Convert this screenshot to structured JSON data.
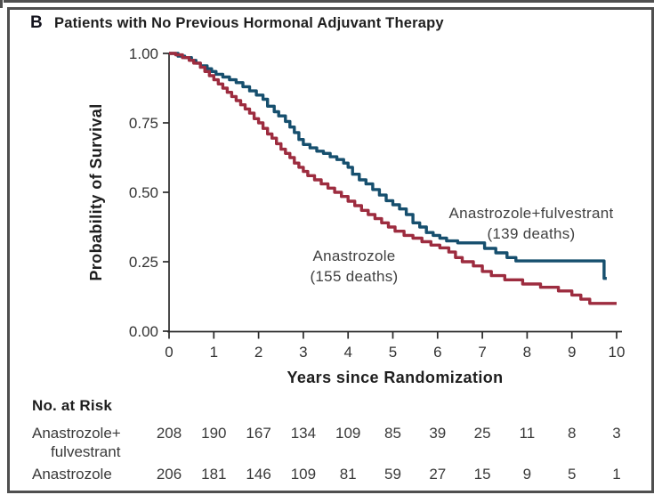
{
  "panel": {
    "letter": "B",
    "title": "Patients with No Previous Hormonal Adjuvant Therapy"
  },
  "colors": {
    "fulvestrant_curve": "#164f6e",
    "anastrozole_curve": "#9d2c3f",
    "axis": "#2a2a2a",
    "text": "#333333",
    "frame_border": "#4f4f4f"
  },
  "chart_data": {
    "type": "line",
    "subtype": "kaplan-meier-step",
    "xlabel": "Years since Randomization",
    "ylabel": "Probability of Survival",
    "xlim": [
      0,
      10
    ],
    "ylim": [
      0.0,
      1.0
    ],
    "grid": false,
    "x_ticks": [
      "0",
      "1",
      "2",
      "3",
      "4",
      "5",
      "6",
      "7",
      "8",
      "9",
      "10"
    ],
    "y_ticks": [
      "0.00",
      "0.25",
      "0.50",
      "0.75",
      "1.00"
    ],
    "series": [
      {
        "name": "Anastrozole+fulvestrant",
        "deaths": 139,
        "color": "#164f6e",
        "points": [
          [
            0,
            1.0
          ],
          [
            0.2,
            0.99
          ],
          [
            0.35,
            0.985
          ],
          [
            0.5,
            0.975
          ],
          [
            0.6,
            0.965
          ],
          [
            0.7,
            0.955
          ],
          [
            0.85,
            0.945
          ],
          [
            0.95,
            0.935
          ],
          [
            1.05,
            0.925
          ],
          [
            1.2,
            0.915
          ],
          [
            1.35,
            0.905
          ],
          [
            1.5,
            0.895
          ],
          [
            1.65,
            0.88
          ],
          [
            1.8,
            0.865
          ],
          [
            1.95,
            0.85
          ],
          [
            2.1,
            0.835
          ],
          [
            2.2,
            0.81
          ],
          [
            2.35,
            0.79
          ],
          [
            2.45,
            0.775
          ],
          [
            2.6,
            0.755
          ],
          [
            2.7,
            0.735
          ],
          [
            2.8,
            0.715
          ],
          [
            2.9,
            0.69
          ],
          [
            3.0,
            0.672
          ],
          [
            3.15,
            0.66
          ],
          [
            3.3,
            0.648
          ],
          [
            3.45,
            0.64
          ],
          [
            3.6,
            0.628
          ],
          [
            3.75,
            0.618
          ],
          [
            3.9,
            0.605
          ],
          [
            4.0,
            0.59
          ],
          [
            4.1,
            0.565
          ],
          [
            4.25,
            0.545
          ],
          [
            4.4,
            0.53
          ],
          [
            4.55,
            0.51
          ],
          [
            4.7,
            0.49
          ],
          [
            4.85,
            0.47
          ],
          [
            5.0,
            0.455
          ],
          [
            5.15,
            0.44
          ],
          [
            5.3,
            0.42
          ],
          [
            5.45,
            0.39
          ],
          [
            5.6,
            0.375
          ],
          [
            5.75,
            0.355
          ],
          [
            5.9,
            0.345
          ],
          [
            6.05,
            0.335
          ],
          [
            6.2,
            0.325
          ],
          [
            6.45,
            0.318
          ],
          [
            7.05,
            0.298
          ],
          [
            7.3,
            0.282
          ],
          [
            7.55,
            0.265
          ],
          [
            7.75,
            0.253
          ],
          [
            9.72,
            0.253
          ],
          [
            9.72,
            0.19
          ],
          [
            9.78,
            0.19
          ]
        ]
      },
      {
        "name": "Anastrozole",
        "deaths": 155,
        "color": "#9d2c3f",
        "points": [
          [
            0,
            1.0
          ],
          [
            0.15,
            0.995
          ],
          [
            0.3,
            0.985
          ],
          [
            0.45,
            0.975
          ],
          [
            0.55,
            0.965
          ],
          [
            0.7,
            0.95
          ],
          [
            0.8,
            0.935
          ],
          [
            0.9,
            0.92
          ],
          [
            1.0,
            0.905
          ],
          [
            1.1,
            0.89
          ],
          [
            1.2,
            0.875
          ],
          [
            1.3,
            0.86
          ],
          [
            1.4,
            0.845
          ],
          [
            1.5,
            0.83
          ],
          [
            1.6,
            0.815
          ],
          [
            1.7,
            0.8
          ],
          [
            1.8,
            0.785
          ],
          [
            1.9,
            0.765
          ],
          [
            2.0,
            0.75
          ],
          [
            2.1,
            0.73
          ],
          [
            2.2,
            0.71
          ],
          [
            2.3,
            0.695
          ],
          [
            2.4,
            0.675
          ],
          [
            2.5,
            0.655
          ],
          [
            2.6,
            0.64
          ],
          [
            2.7,
            0.625
          ],
          [
            2.8,
            0.605
          ],
          [
            2.9,
            0.59
          ],
          [
            3.0,
            0.575
          ],
          [
            3.1,
            0.56
          ],
          [
            3.25,
            0.545
          ],
          [
            3.4,
            0.53
          ],
          [
            3.55,
            0.515
          ],
          [
            3.7,
            0.5
          ],
          [
            3.85,
            0.485
          ],
          [
            4.0,
            0.468
          ],
          [
            4.15,
            0.452
          ],
          [
            4.3,
            0.435
          ],
          [
            4.45,
            0.42
          ],
          [
            4.6,
            0.405
          ],
          [
            4.75,
            0.39
          ],
          [
            4.9,
            0.375
          ],
          [
            5.05,
            0.36
          ],
          [
            5.25,
            0.345
          ],
          [
            5.45,
            0.335
          ],
          [
            5.65,
            0.322
          ],
          [
            5.85,
            0.31
          ],
          [
            6.05,
            0.3
          ],
          [
            6.25,
            0.285
          ],
          [
            6.4,
            0.265
          ],
          [
            6.55,
            0.25
          ],
          [
            6.8,
            0.235
          ],
          [
            7.0,
            0.215
          ],
          [
            7.2,
            0.2
          ],
          [
            7.5,
            0.185
          ],
          [
            7.9,
            0.17
          ],
          [
            8.3,
            0.158
          ],
          [
            8.7,
            0.145
          ],
          [
            9.0,
            0.13
          ],
          [
            9.2,
            0.115
          ],
          [
            9.4,
            0.1
          ],
          [
            10.0,
            0.1
          ]
        ]
      }
    ],
    "annotations": [
      {
        "lines": [
          "Anastrozole+fulvestrant",
          "(139 deaths)"
        ]
      },
      {
        "lines": [
          "Anastrozole",
          "(155 deaths)"
        ]
      }
    ],
    "legend_position": "inline-annotations"
  },
  "risk_table": {
    "header": "No. at Risk",
    "rows": [
      {
        "label_lines": [
          "Anastrozole+",
          "fulvestrant"
        ],
        "values": [
          "208",
          "190",
          "167",
          "134",
          "109",
          "85",
          "39",
          "25",
          "11",
          "8",
          "3"
        ]
      },
      {
        "label_lines": [
          "Anastrozole"
        ],
        "values": [
          "206",
          "181",
          "146",
          "109",
          "81",
          "59",
          "27",
          "15",
          "9",
          "5",
          "1"
        ]
      }
    ]
  }
}
